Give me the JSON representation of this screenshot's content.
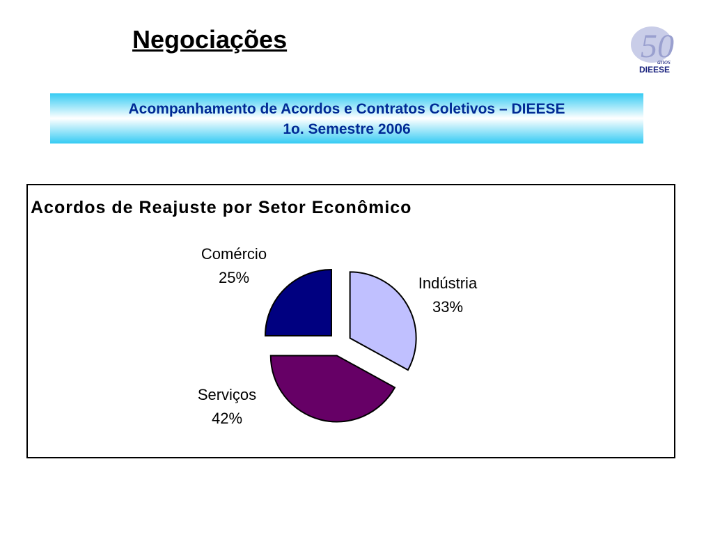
{
  "slide": {
    "title": "Negociações",
    "subtitle_line1": "Acompanhamento de Acordos e Contratos Coletivos – DIEESE",
    "subtitle_line2": "1o. Semestre 2006"
  },
  "logo": {
    "number": "50",
    "word": "anos",
    "brand": "DIEESE"
  },
  "chart_data": {
    "type": "pie",
    "title": "Acordos de Reajuste por Setor  Econômico",
    "slices": [
      {
        "name": "Indústria",
        "value": 33,
        "label": "33%",
        "color": "#c0c0ff"
      },
      {
        "name": "Serviços",
        "value": 42,
        "label": "42%",
        "color": "#660066"
      },
      {
        "name": "Comércio",
        "value": 25,
        "label": "25%",
        "color": "#000080"
      }
    ],
    "exploded": true,
    "legend": "none"
  }
}
